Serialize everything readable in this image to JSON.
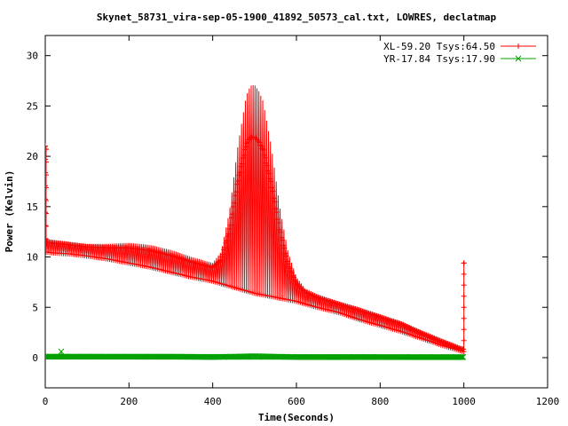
{
  "chart_data": {
    "type": "line",
    "title": "Skynet_58731_vira-sep-05-1900_41892_50573_cal.txt, LOWRES, declatmap",
    "xlabel": "Time(Seconds)",
    "ylabel": "Power (Kelvin)",
    "xlim": [
      0,
      1200
    ],
    "ylim": [
      -3,
      32
    ],
    "xticks": [
      0,
      200,
      400,
      600,
      800,
      1000,
      1200
    ],
    "yticks": [
      0,
      5,
      10,
      15,
      20,
      25,
      30
    ],
    "legend_position": "top-right",
    "grid": false,
    "series": [
      {
        "name": "XL-59.20 Tsys:64.50",
        "color": "#ff0000",
        "marker": "+",
        "baseline": {
          "x": [
            2,
            20,
            60,
            100,
            150,
            200,
            250,
            300,
            350,
            400,
            450,
            500,
            550,
            600,
            650,
            700,
            750,
            800,
            850,
            900,
            950,
            990,
            1000
          ],
          "y": [
            10.5,
            10.4,
            10.3,
            10.1,
            9.8,
            9.4,
            9.0,
            8.5,
            8.0,
            7.6,
            7.0,
            6.4,
            6.0,
            5.6,
            5.0,
            4.5,
            3.8,
            3.2,
            2.6,
            1.9,
            1.2,
            0.7,
            0.6
          ]
        },
        "upper": {
          "x": [
            2,
            20,
            60,
            100,
            150,
            200,
            250,
            300,
            350,
            400,
            420,
            440,
            460,
            480,
            490,
            500,
            510,
            520,
            540,
            560,
            580,
            600,
            620,
            650,
            700,
            750,
            800,
            850,
            900,
            950,
            990,
            1000
          ],
          "y": [
            11.8,
            11.7,
            11.5,
            11.3,
            11.3,
            11.4,
            11.2,
            10.7,
            10.0,
            9.4,
            10.5,
            14.5,
            21.0,
            26.0,
            27.0,
            27.1,
            26.5,
            25.5,
            21.0,
            15.0,
            10.5,
            8.0,
            6.9,
            6.3,
            5.6,
            5.0,
            4.3,
            3.6,
            2.6,
            1.7,
            1.0,
            0.9
          ]
        },
        "spikes": [
          {
            "x": 0,
            "y": 21.0
          },
          {
            "x": 2,
            "y": 20.7
          },
          {
            "x": 1000,
            "y": 9.4
          }
        ]
      },
      {
        "name": "YR-17.84 Tsys:17.90",
        "color": "#00a000",
        "marker": "x",
        "baseline": {
          "x": [
            0,
            100,
            200,
            300,
            400,
            500,
            600,
            700,
            800,
            900,
            1000
          ],
          "y": [
            0.1,
            0.1,
            0.1,
            0.1,
            0.05,
            0.15,
            0.05,
            0.05,
            0.05,
            0.05,
            0.05
          ]
        },
        "upper": {
          "x": [
            0,
            1000
          ],
          "y": [
            0.1,
            0.05
          ]
        },
        "spikes": [
          {
            "x": 38,
            "y": 0.6
          }
        ]
      }
    ]
  }
}
